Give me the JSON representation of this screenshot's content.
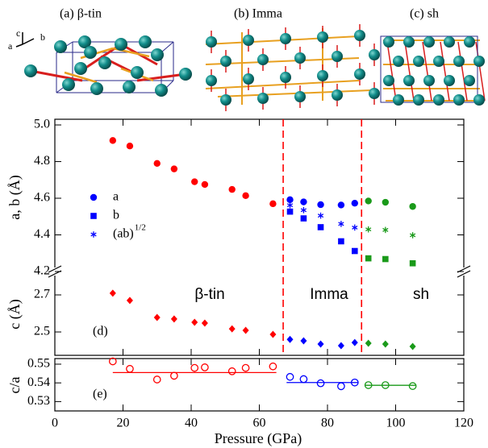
{
  "structures": {
    "labels": [
      "(a) β-tin",
      "(b) Imma",
      "(c) sh"
    ],
    "axes": [
      "c",
      "a",
      "b"
    ]
  },
  "chart_data": [
    {
      "type": "scatter",
      "ylabel": "a, b (Å)",
      "xlim": [
        0,
        120
      ],
      "ylim": [
        4.2,
        5.031
      ],
      "yticks": [
        4.2,
        4.4,
        4.6,
        4.8,
        {
          "value": 5,
          "label": "5.0"
        }
      ],
      "vlines": {
        "color": "#ff0000",
        "x": [
          67,
          90
        ]
      },
      "legend": [
        {
          "label": "a",
          "marker": "circle"
        },
        {
          "label": "b",
          "marker": "square"
        },
        {
          "label": "(ab)",
          "sup": "1/2",
          "marker": "asterisk"
        }
      ],
      "legend_color": "#0000ff",
      "series": [
        {
          "color": "#ff0000",
          "marker": "circle",
          "x": [
            17,
            22,
            30,
            35,
            41,
            44,
            52,
            56,
            64
          ],
          "values": [
            4.915,
            4.885,
            4.79,
            4.76,
            4.69,
            4.675,
            4.648,
            4.614,
            4.57
          ]
        },
        {
          "color": "#0000ff",
          "marker": "circle",
          "x": [
            69,
            73,
            78,
            84,
            88
          ],
          "values": [
            4.592,
            4.58,
            4.565,
            4.563,
            4.573
          ]
        },
        {
          "color": "#0000ff",
          "marker": "square",
          "x": [
            69,
            73,
            78,
            84,
            88
          ],
          "values": [
            4.527,
            4.49,
            4.442,
            4.365,
            4.312
          ]
        },
        {
          "color": "#0000ff",
          "marker": "asterisk",
          "x": [
            69,
            73,
            78,
            84,
            88
          ],
          "values": [
            4.562,
            4.535,
            4.505,
            4.46,
            4.44
          ]
        },
        {
          "color": "#1a9a1a",
          "marker": "circle",
          "x": [
            92,
            97,
            105
          ],
          "values": [
            4.585,
            4.578,
            4.555
          ]
        },
        {
          "color": "#1a9a1a",
          "marker": "square",
          "x": [
            92,
            97,
            105
          ],
          "values": [
            4.272,
            4.268,
            4.245
          ]
        },
        {
          "color": "#1a9a1a",
          "marker": "asterisk",
          "x": [
            92,
            97,
            105
          ],
          "values": [
            4.43,
            4.427,
            4.398
          ]
        }
      ]
    },
    {
      "type": "scatter",
      "ylabel": "c (Å)",
      "panel_label": "(d)",
      "xlim": [
        0,
        120
      ],
      "ylim": [
        2.374,
        2.826
      ],
      "yticks": [
        2.5,
        2.7
      ],
      "phase_labels": [
        "β-tin",
        "Imma",
        "sh"
      ],
      "phase_color": "#0000ff",
      "series": [
        {
          "color": "#ff0000",
          "marker": "diamond",
          "x": [
            17,
            22,
            30,
            35,
            41,
            44,
            52,
            56,
            64
          ],
          "values": [
            2.709,
            2.67,
            2.578,
            2.57,
            2.552,
            2.548,
            2.517,
            2.509,
            2.487
          ]
        },
        {
          "color": "#0000ff",
          "marker": "diamond",
          "x": [
            69,
            73,
            78,
            84,
            88
          ],
          "values": [
            2.46,
            2.452,
            2.435,
            2.426,
            2.443
          ]
        },
        {
          "color": "#1a9a1a",
          "marker": "diamond",
          "x": [
            92,
            97,
            105
          ],
          "values": [
            2.439,
            2.435,
            2.422
          ]
        }
      ]
    },
    {
      "type": "scatter",
      "ylabel": "c/a",
      "panel_label": "(e)",
      "xlabel": "Pressure (GPa)",
      "xlim": [
        0,
        120
      ],
      "ylim": [
        0.525,
        0.553
      ],
      "xticks": [
        0,
        20,
        40,
        60,
        80,
        100,
        120
      ],
      "yticks": [
        0.53,
        0.54,
        0.55
      ],
      "series": [
        {
          "color": "#ff0000",
          "marker": "open-circle",
          "x": [
            17,
            22,
            30,
            35,
            41,
            44,
            52,
            56,
            64
          ],
          "values": [
            0.5515,
            0.5475,
            0.5418,
            0.5438,
            0.548,
            0.5483,
            0.5462,
            0.548,
            0.5488
          ]
        },
        {
          "color": "#0000ff",
          "marker": "open-circle",
          "x": [
            69,
            73,
            78,
            84,
            88
          ],
          "values": [
            0.5432,
            0.542,
            0.5398,
            0.5382,
            0.5402
          ]
        },
        {
          "color": "#1a9a1a",
          "marker": "open-circle",
          "x": [
            92,
            97,
            105
          ],
          "values": [
            0.5388,
            0.5388,
            0.5383
          ]
        }
      ],
      "fits": [
        {
          "color": "#ff0000",
          "x": [
            17,
            65
          ],
          "values": [
            0.5455,
            0.5455
          ]
        },
        {
          "color": "#0000ff",
          "x": [
            68,
            89
          ],
          "values": [
            0.5402,
            0.5402
          ]
        },
        {
          "color": "#1a9a1a",
          "x": [
            91,
            106
          ],
          "values": [
            0.5387,
            0.5387
          ]
        }
      ]
    }
  ]
}
